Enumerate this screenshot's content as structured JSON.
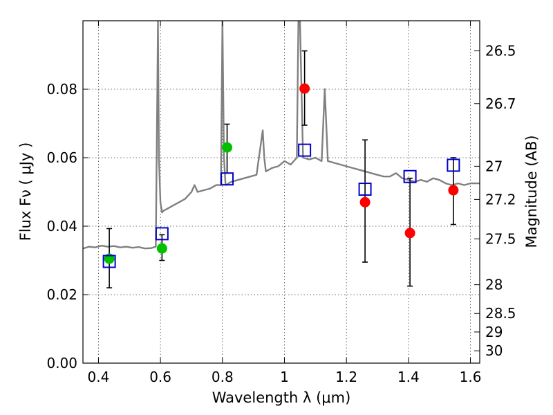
{
  "chart_data": {
    "type": "scatter",
    "title": "",
    "xlabel": "Wavelength  λ (μm)",
    "ylabel": "Flux  Fν  ( μJy )",
    "y2label": "Magnitude (AB)",
    "xlim": [
      0.35,
      1.63
    ],
    "ylim": [
      0.0,
      0.1
    ],
    "xticks": [
      0.4,
      0.6,
      0.8,
      1.0,
      1.2,
      1.4,
      1.6
    ],
    "xtick_labels": [
      "0.4",
      "0.6",
      "0.8",
      "1",
      "1.2",
      "1.4",
      "1.6"
    ],
    "yticks": [
      0.0,
      0.02,
      0.04,
      0.06,
      0.08
    ],
    "ytick_labels": [
      "0.00",
      "0.02",
      "0.04",
      "0.06",
      "0.08"
    ],
    "y2ticks": [
      {
        "label": "26.5",
        "flux": 0.0912
      },
      {
        "label": "26.7",
        "flux": 0.0758
      },
      {
        "label": "27",
        "flux": 0.0575
      },
      {
        "label": "27.2",
        "flux": 0.0478
      },
      {
        "label": "27.5",
        "flux": 0.0363
      },
      {
        "label": "28",
        "flux": 0.0229
      },
      {
        "label": "28.5",
        "flux": 0.0145
      },
      {
        "label": "29",
        "flux": 0.0091
      },
      {
        "label": "30",
        "flux": 0.0036
      }
    ],
    "grid": true,
    "series": [
      {
        "kind": "model-spectrum",
        "color": "#808080",
        "x": [
          0.35,
          0.37,
          0.39,
          0.41,
          0.43,
          0.45,
          0.47,
          0.49,
          0.51,
          0.53,
          0.55,
          0.57,
          0.585,
          0.59,
          0.592,
          0.595,
          0.6,
          0.605,
          0.61,
          0.62,
          0.63,
          0.64,
          0.66,
          0.68,
          0.7,
          0.71,
          0.72,
          0.74,
          0.76,
          0.78,
          0.795,
          0.8,
          0.805,
          0.81,
          0.83,
          0.85,
          0.87,
          0.89,
          0.91,
          0.93,
          0.935,
          0.94,
          0.96,
          0.98,
          1.0,
          1.02,
          1.04,
          1.045,
          1.05,
          1.06,
          1.08,
          1.1,
          1.12,
          1.13,
          1.14,
          1.16,
          1.18,
          1.2,
          1.22,
          1.24,
          1.26,
          1.28,
          1.3,
          1.32,
          1.34,
          1.36,
          1.38,
          1.4,
          1.42,
          1.44,
          1.46,
          1.48,
          1.5,
          1.52,
          1.54,
          1.56,
          1.58,
          1.6,
          1.63
        ],
        "y": [
          0.0335,
          0.034,
          0.0338,
          0.0343,
          0.034,
          0.0342,
          0.0338,
          0.034,
          0.0337,
          0.0339,
          0.0335,
          0.0336,
          0.034,
          0.08,
          0.1,
          0.06,
          0.047,
          0.044,
          0.0445,
          0.045,
          0.0455,
          0.046,
          0.047,
          0.048,
          0.05,
          0.052,
          0.05,
          0.0505,
          0.051,
          0.052,
          0.052,
          0.1,
          0.06,
          0.052,
          0.053,
          0.0535,
          0.054,
          0.0545,
          0.055,
          0.068,
          0.06,
          0.056,
          0.057,
          0.0575,
          0.059,
          0.058,
          0.06,
          0.1,
          0.1,
          0.06,
          0.0595,
          0.06,
          0.059,
          0.08,
          0.059,
          0.0585,
          0.058,
          0.0575,
          0.057,
          0.0565,
          0.056,
          0.0555,
          0.055,
          0.0545,
          0.0545,
          0.0555,
          0.054,
          0.0535,
          0.053,
          0.0535,
          0.053,
          0.054,
          0.0535,
          0.0525,
          0.052,
          0.0525,
          0.052,
          0.0525,
          0.0525
        ]
      },
      {
        "kind": "model-photometry",
        "color": "#0000cc",
        "marker": "open-square",
        "x": [
          0.435,
          0.605,
          0.815,
          1.065,
          1.26,
          1.405,
          1.545
        ],
        "y": [
          0.0297,
          0.0378,
          0.0538,
          0.0622,
          0.0508,
          0.0545,
          0.0578
        ]
      },
      {
        "kind": "observed-green",
        "color": "#00c000",
        "marker": "circle",
        "x": [
          0.435,
          0.605,
          0.815
        ],
        "y": [
          0.0305,
          0.0335,
          0.063
        ],
        "yerr": [
          [
            0.022,
            0.0393
          ],
          [
            0.03,
            0.0375
          ],
          [
            0.0555,
            0.0698
          ]
        ]
      },
      {
        "kind": "observed-red",
        "color": "#ff0000",
        "marker": "circle",
        "x": [
          1.065,
          1.26,
          1.405,
          1.545
        ],
        "y": [
          0.0802,
          0.047,
          0.038,
          0.0505
        ],
        "yerr": [
          [
            0.0695,
            0.0912
          ],
          [
            0.0295,
            0.0652
          ],
          [
            0.0225,
            0.054
          ],
          [
            0.0405,
            0.06
          ]
        ]
      }
    ]
  }
}
